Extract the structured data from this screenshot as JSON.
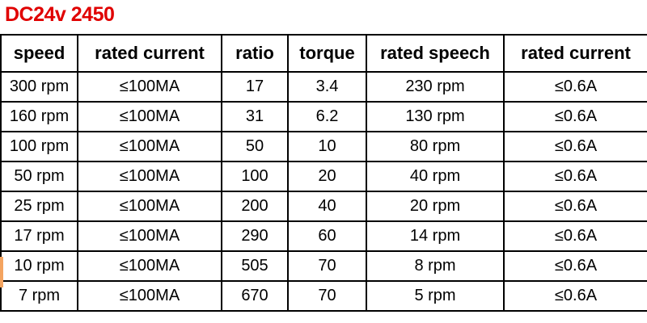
{
  "header": {
    "title": "DC24v 2450"
  },
  "table": {
    "columns": [
      "speed",
      "rated current",
      "ratio",
      "torque",
      "rated speech",
      "rated current"
    ],
    "rows": [
      [
        "300 rpm",
        "≤100MA",
        "17",
        "3.4",
        "230 rpm",
        "≤0.6A"
      ],
      [
        "160 rpm",
        "≤100MA",
        "31",
        "6.2",
        "130 rpm",
        "≤0.6A"
      ],
      [
        "100 rpm",
        "≤100MA",
        "50",
        "10",
        "80 rpm",
        "≤0.6A"
      ],
      [
        "50 rpm",
        "≤100MA",
        "100",
        "20",
        "40 rpm",
        "≤0.6A"
      ],
      [
        "25 rpm",
        "≤100MA",
        "200",
        "40",
        "20 rpm",
        "≤0.6A"
      ],
      [
        "17 rpm",
        "≤100MA",
        "290",
        "60",
        "14 rpm",
        "≤0.6A"
      ],
      [
        "10 rpm",
        "≤100MA",
        "505",
        "70",
        "8 rpm",
        "≤0.6A"
      ],
      [
        "7 rpm",
        "≤100MA",
        "670",
        "70",
        "5 rpm",
        "≤0.6A"
      ]
    ]
  }
}
